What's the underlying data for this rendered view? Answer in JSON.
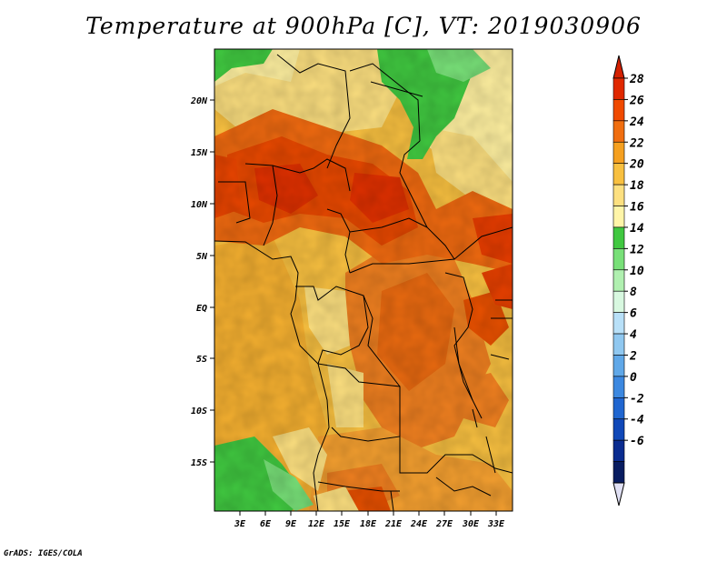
{
  "title": "Temperature at 900hPa [C], VT: 2019030906",
  "credit": "GrADS: IGES/COLA",
  "map": {
    "lat_labels": [
      "20N",
      "15N",
      "10N",
      "5N",
      "EQ",
      "5S",
      "10S",
      "15S"
    ],
    "lon_labels": [
      "3E",
      "6E",
      "9E",
      "12E",
      "15E",
      "18E",
      "21E",
      "24E",
      "27E",
      "30E",
      "33E"
    ]
  },
  "colorbar": {
    "labels": [
      "28",
      "26",
      "24",
      "22",
      "20",
      "18",
      "16",
      "14",
      "12",
      "10",
      "8",
      "6",
      "4",
      "2",
      "0",
      "-2",
      "-4",
      "-6"
    ],
    "colors_top_to_bottom": [
      "#e02800",
      "#f04a00",
      "#f06e10",
      "#f5a020",
      "#f8c040",
      "#fde080",
      "#fff5a8",
      "#40c840",
      "#78e078",
      "#b0f0b0",
      "#d8f8e0",
      "#b8e0f8",
      "#90c8f0",
      "#60a8e8",
      "#3c88e0",
      "#2066d0",
      "#1048b8",
      "#0a2c90",
      "#081c60"
    ],
    "upper_arrow_color": "#d42000",
    "lower_arrow_color": "#e0e0f4"
  }
}
